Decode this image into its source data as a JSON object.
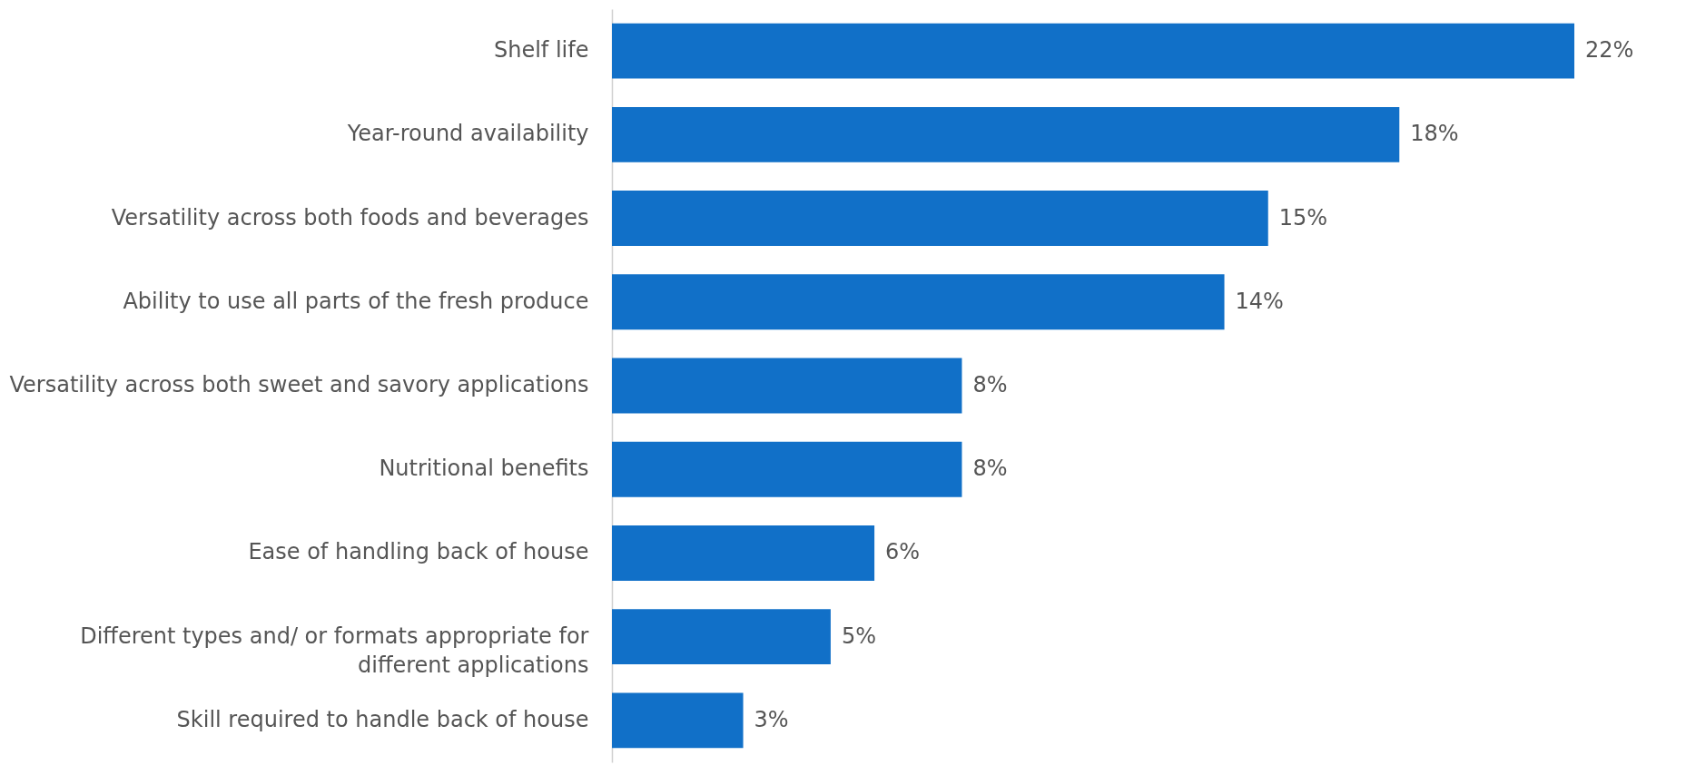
{
  "chart_data": {
    "type": "bar",
    "orientation": "horizontal",
    "color": "#1170c8",
    "categories": [
      "Shelf life",
      "Year-round availability",
      "Versatility across both foods and beverages",
      "Ability to use all parts of the fresh produce",
      "Versatility across both sweet and savory applications",
      "Nutritional benefits",
      "Ease of handling back of house",
      "Different types and/ or formats appropriate for different applications",
      "Skill required to handle back of house"
    ],
    "values": [
      22,
      18,
      15,
      14,
      8,
      8,
      6,
      5,
      3
    ],
    "value_labels": [
      "22%",
      "18%",
      "15%",
      "14%",
      "8%",
      "8%",
      "6%",
      "5%",
      "3%"
    ],
    "grid": false
  }
}
